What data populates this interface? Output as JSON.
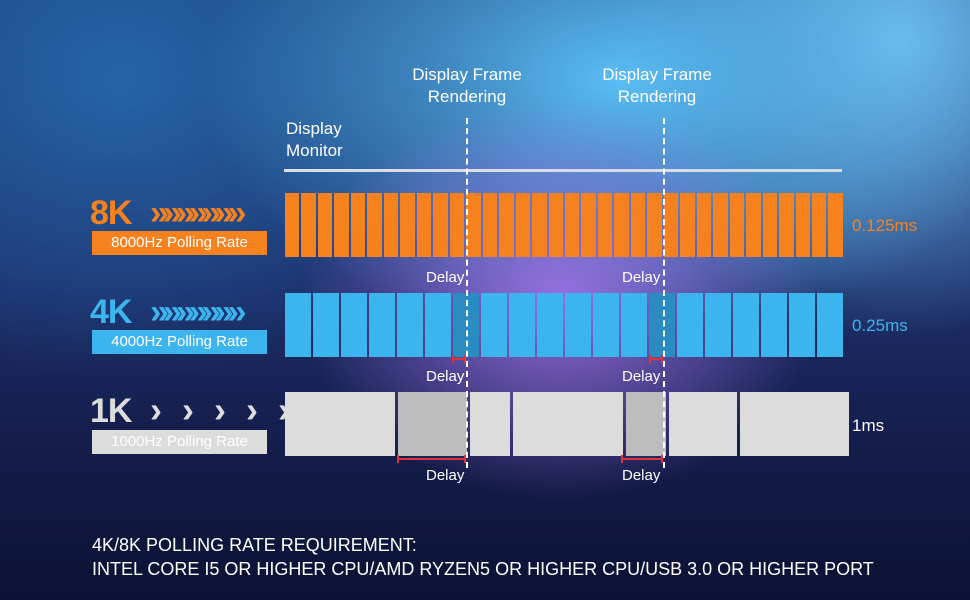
{
  "header": {
    "frame_label_1": "Display Frame\nRendering",
    "frame_label_2": "Display Frame\nRendering",
    "monitor_label": "Display\nMonitor"
  },
  "rows": [
    {
      "tier": "8K",
      "badge": "8000Hz Polling Rate",
      "rate": "0.125ms",
      "color": "#f6821f",
      "chevrons": "»»»»»»»",
      "segments": 34
    },
    {
      "tier": "4K",
      "badge": "4000Hz Polling Rate",
      "rate": "0.25ms",
      "color": "#3cb4ee",
      "chevrons": "»»»»»»»",
      "segments": 20
    },
    {
      "tier": "1K",
      "badge": "1000Hz Polling Rate",
      "rate": "1ms",
      "color": "#dcdcdc",
      "chevrons": "›  ›  ›  ›  ›",
      "segments": 5
    }
  ],
  "delay_label": "Delay",
  "requirement": {
    "title": "4K/8K POLLING RATE REQUIREMENT:",
    "text": "INTEL CORE I5 OR HIGHER CPU/AMD RYZEN5 OR HIGHER CPU/USB 3.0 OR HIGHER PORT"
  }
}
